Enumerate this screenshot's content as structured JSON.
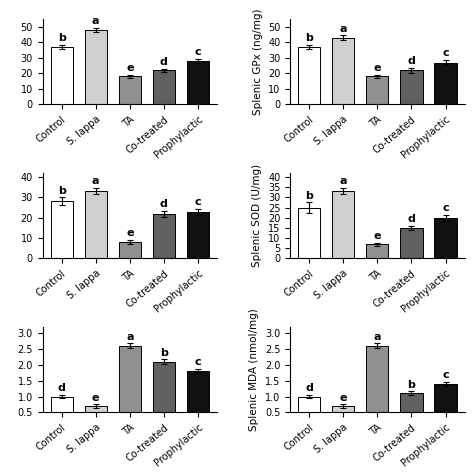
{
  "chart_data": [
    {
      "type": "bar",
      "categories": [
        "Control",
        "S. lappa",
        "TA",
        "Co-treated",
        "Prophylactic"
      ],
      "values": [
        37,
        48,
        18,
        22,
        28
      ],
      "errors": [
        1.5,
        1.5,
        1.0,
        1.0,
        1.5
      ],
      "annotations": [
        "b",
        "a",
        "e",
        "d",
        "c"
      ],
      "colors": [
        "white",
        "#d0d0d0",
        "#909090",
        "#606060",
        "#111111"
      ],
      "ylim": [
        0,
        55
      ],
      "yticks": [
        0,
        10,
        20,
        30,
        40,
        50
      ]
    },
    {
      "type": "bar",
      "categories": [
        "Control",
        "S. lappa",
        "TA",
        "Co-treated",
        "Prophylactic"
      ],
      "values": [
        37,
        43,
        18,
        22,
        27
      ],
      "errors": [
        1.5,
        1.5,
        1.0,
        1.5,
        1.5
      ],
      "annotations": [
        "b",
        "a",
        "e",
        "d",
        "c"
      ],
      "colors": [
        "white",
        "#d0d0d0",
        "#909090",
        "#606060",
        "#111111"
      ],
      "ylabel": "Splenic GPx (ng/mg)",
      "ylim": [
        0,
        55
      ],
      "yticks": [
        0,
        10,
        20,
        30,
        40,
        50
      ]
    },
    {
      "type": "bar",
      "categories": [
        "Control",
        "S. lappa",
        "TA",
        "Co-treated",
        "Prophylactic"
      ],
      "values": [
        28,
        33,
        8,
        22,
        23
      ],
      "errors": [
        2.0,
        1.5,
        1.0,
        1.5,
        1.5
      ],
      "annotations": [
        "b",
        "a",
        "e",
        "d",
        "c"
      ],
      "colors": [
        "white",
        "#d0d0d0",
        "#909090",
        "#606060",
        "#111111"
      ],
      "ylim": [
        0,
        42
      ],
      "yticks": [
        0,
        10,
        20,
        30,
        40
      ]
    },
    {
      "type": "bar",
      "categories": [
        "Control",
        "S. lappa",
        "TA",
        "Co-treated",
        "Prophylactic"
      ],
      "values": [
        25,
        33,
        7,
        15,
        20
      ],
      "errors": [
        2.5,
        1.5,
        0.8,
        1.0,
        1.5
      ],
      "annotations": [
        "b",
        "a",
        "e",
        "d",
        "c"
      ],
      "colors": [
        "white",
        "#d0d0d0",
        "#909090",
        "#606060",
        "#111111"
      ],
      "ylabel": "Splenic SOD (U/mg)",
      "ylim": [
        0,
        42
      ],
      "yticks": [
        0,
        5,
        10,
        15,
        20,
        25,
        30,
        35,
        40
      ]
    },
    {
      "type": "bar",
      "categories": [
        "Control",
        "S. lappa",
        "TA",
        "Co-treated",
        "Prophylactic"
      ],
      "values": [
        1.0,
        0.7,
        2.6,
        2.1,
        1.8
      ],
      "errors": [
        0.05,
        0.05,
        0.08,
        0.07,
        0.07
      ],
      "annotations": [
        "d",
        "e",
        "a",
        "b",
        "c"
      ],
      "colors": [
        "white",
        "#d0d0d0",
        "#909090",
        "#606060",
        "#111111"
      ],
      "ylim": [
        0.5,
        3.2
      ],
      "yticks": [
        0.5,
        {
          "value": 1.0,
          "label": "1.0"
        },
        1.5,
        {
          "value": 2.0,
          "label": "2.0"
        },
        2.5,
        {
          "value": 3.0,
          "label": "3.0"
        }
      ]
    },
    {
      "type": "bar",
      "categories": [
        "Control",
        "S. lappa",
        "TA",
        "Co-treated",
        "Prophylactic"
      ],
      "values": [
        1.0,
        0.7,
        2.6,
        1.1,
        1.4
      ],
      "errors": [
        0.05,
        0.05,
        0.08,
        0.06,
        0.07
      ],
      "annotations": [
        "d",
        "e",
        "a",
        "b",
        "c"
      ],
      "colors": [
        "white",
        "#d0d0d0",
        "#909090",
        "#606060",
        "#111111"
      ],
      "ylabel": "Splenic MDA (nmol/mg)",
      "ylim": [
        0.5,
        3.2
      ],
      "yticks": [
        0.5,
        {
          "value": 1.0,
          "label": "1.0"
        },
        1.5,
        {
          "value": 2.0,
          "label": "2.0"
        },
        2.5,
        {
          "value": 3.0,
          "label": "3.0"
        }
      ]
    }
  ]
}
